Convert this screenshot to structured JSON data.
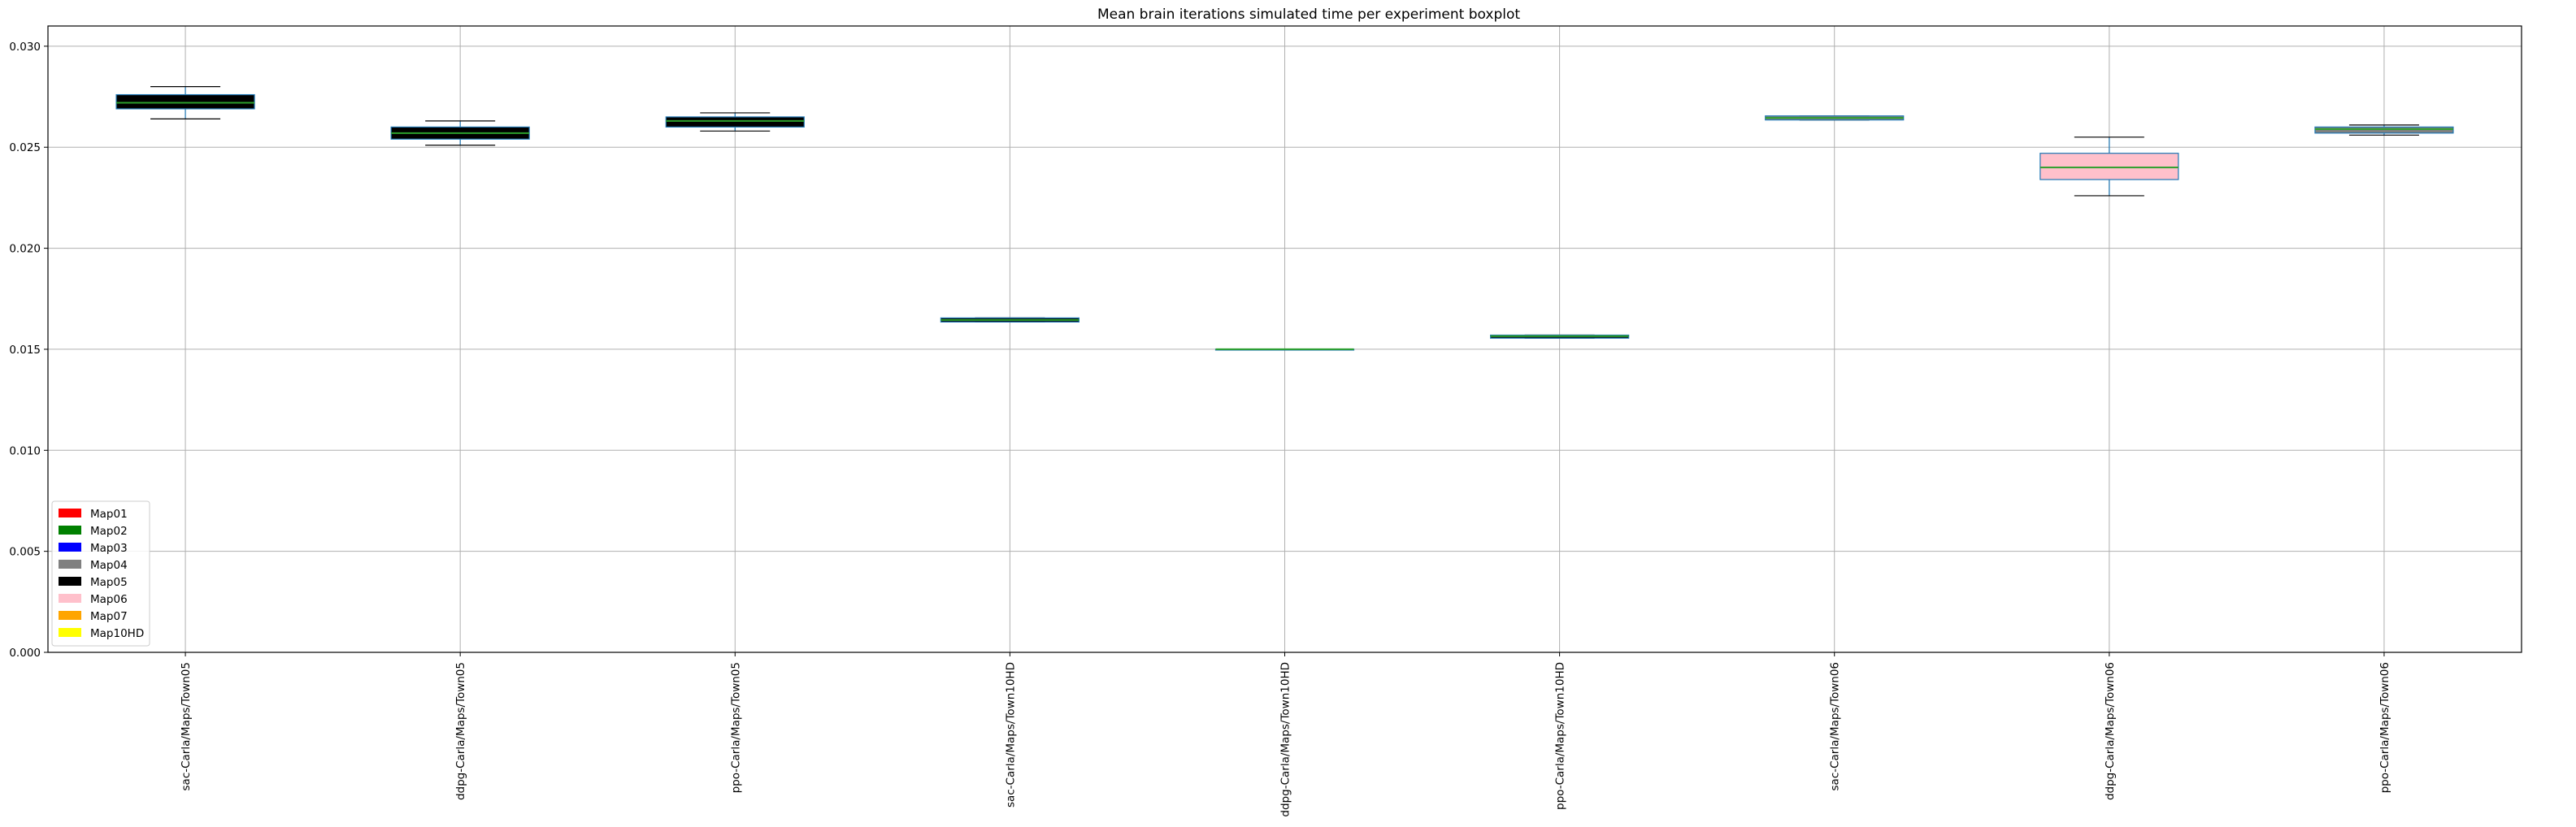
{
  "chart_data": {
    "type": "boxplot",
    "title": "Mean brain iterations simulated time per experiment boxplot",
    "xlabel": "",
    "ylabel": "",
    "ylim": [
      0,
      0.031
    ],
    "yticks": [
      "0.000",
      "0.005",
      "0.010",
      "0.015",
      "0.020",
      "0.025",
      "0.030"
    ],
    "grid": true,
    "categories": [
      "sac-Carla/Maps/Town05",
      "ddpg-Carla/Maps/Town05",
      "ppo-Carla/Maps/Town05",
      "sac-Carla/Maps/Town10HD",
      "ddpg-Carla/Maps/Town10HD",
      "ppo-Carla/Maps/Town10HD",
      "sac-Carla/Maps/Town06",
      "ddpg-Carla/Maps/Town06",
      "ppo-Carla/Maps/Town06"
    ],
    "boxes": [
      {
        "whislo": 0.0264,
        "q1": 0.0269,
        "med": 0.0272,
        "q3": 0.0276,
        "whishi": 0.028,
        "color": "#000000"
      },
      {
        "whislo": 0.0251,
        "q1": 0.0254,
        "med": 0.0257,
        "q3": 0.026,
        "whishi": 0.0263,
        "color": "#000000"
      },
      {
        "whislo": 0.0258,
        "q1": 0.026,
        "med": 0.0263,
        "q3": 0.0265,
        "whishi": 0.0267,
        "color": "#000000"
      },
      {
        "whislo": 0.01635,
        "q1": 0.01635,
        "med": 0.01645,
        "q3": 0.01655,
        "whishi": 0.01655,
        "color": "#000000"
      },
      {
        "whislo": 0.015,
        "q1": 0.015,
        "med": 0.015,
        "q3": 0.015,
        "whishi": 0.015,
        "color": "#000000"
      },
      {
        "whislo": 0.01555,
        "q1": 0.01555,
        "med": 0.01565,
        "q3": 0.0157,
        "whishi": 0.0157,
        "color": "#000000"
      },
      {
        "whislo": 0.02635,
        "q1": 0.02635,
        "med": 0.02645,
        "q3": 0.02655,
        "whishi": 0.02655,
        "color": "#808080"
      },
      {
        "whislo": 0.0226,
        "q1": 0.0234,
        "med": 0.024,
        "q3": 0.0247,
        "whishi": 0.0255,
        "color": "#ffc0cb"
      },
      {
        "whislo": 0.0256,
        "q1": 0.0257,
        "med": 0.0259,
        "q3": 0.026,
        "whishi": 0.0261,
        "color": "#808080"
      }
    ],
    "legend": {
      "placement": "lower-left",
      "entries": [
        {
          "label": "Map01",
          "color": "#ff0000"
        },
        {
          "label": "Map02",
          "color": "#008000"
        },
        {
          "label": "Map03",
          "color": "#0000ff"
        },
        {
          "label": "Map04",
          "color": "#808080"
        },
        {
          "label": "Map05",
          "color": "#000000"
        },
        {
          "label": "Map06",
          "color": "#ffc0cb"
        },
        {
          "label": "Map07",
          "color": "#ffa500"
        },
        {
          "label": "Map10HD",
          "color": "#ffff00"
        }
      ]
    },
    "colors": {
      "box_edge": "#1f77b4",
      "median": "#2ca02c",
      "grid": "#b0b0b0"
    }
  }
}
